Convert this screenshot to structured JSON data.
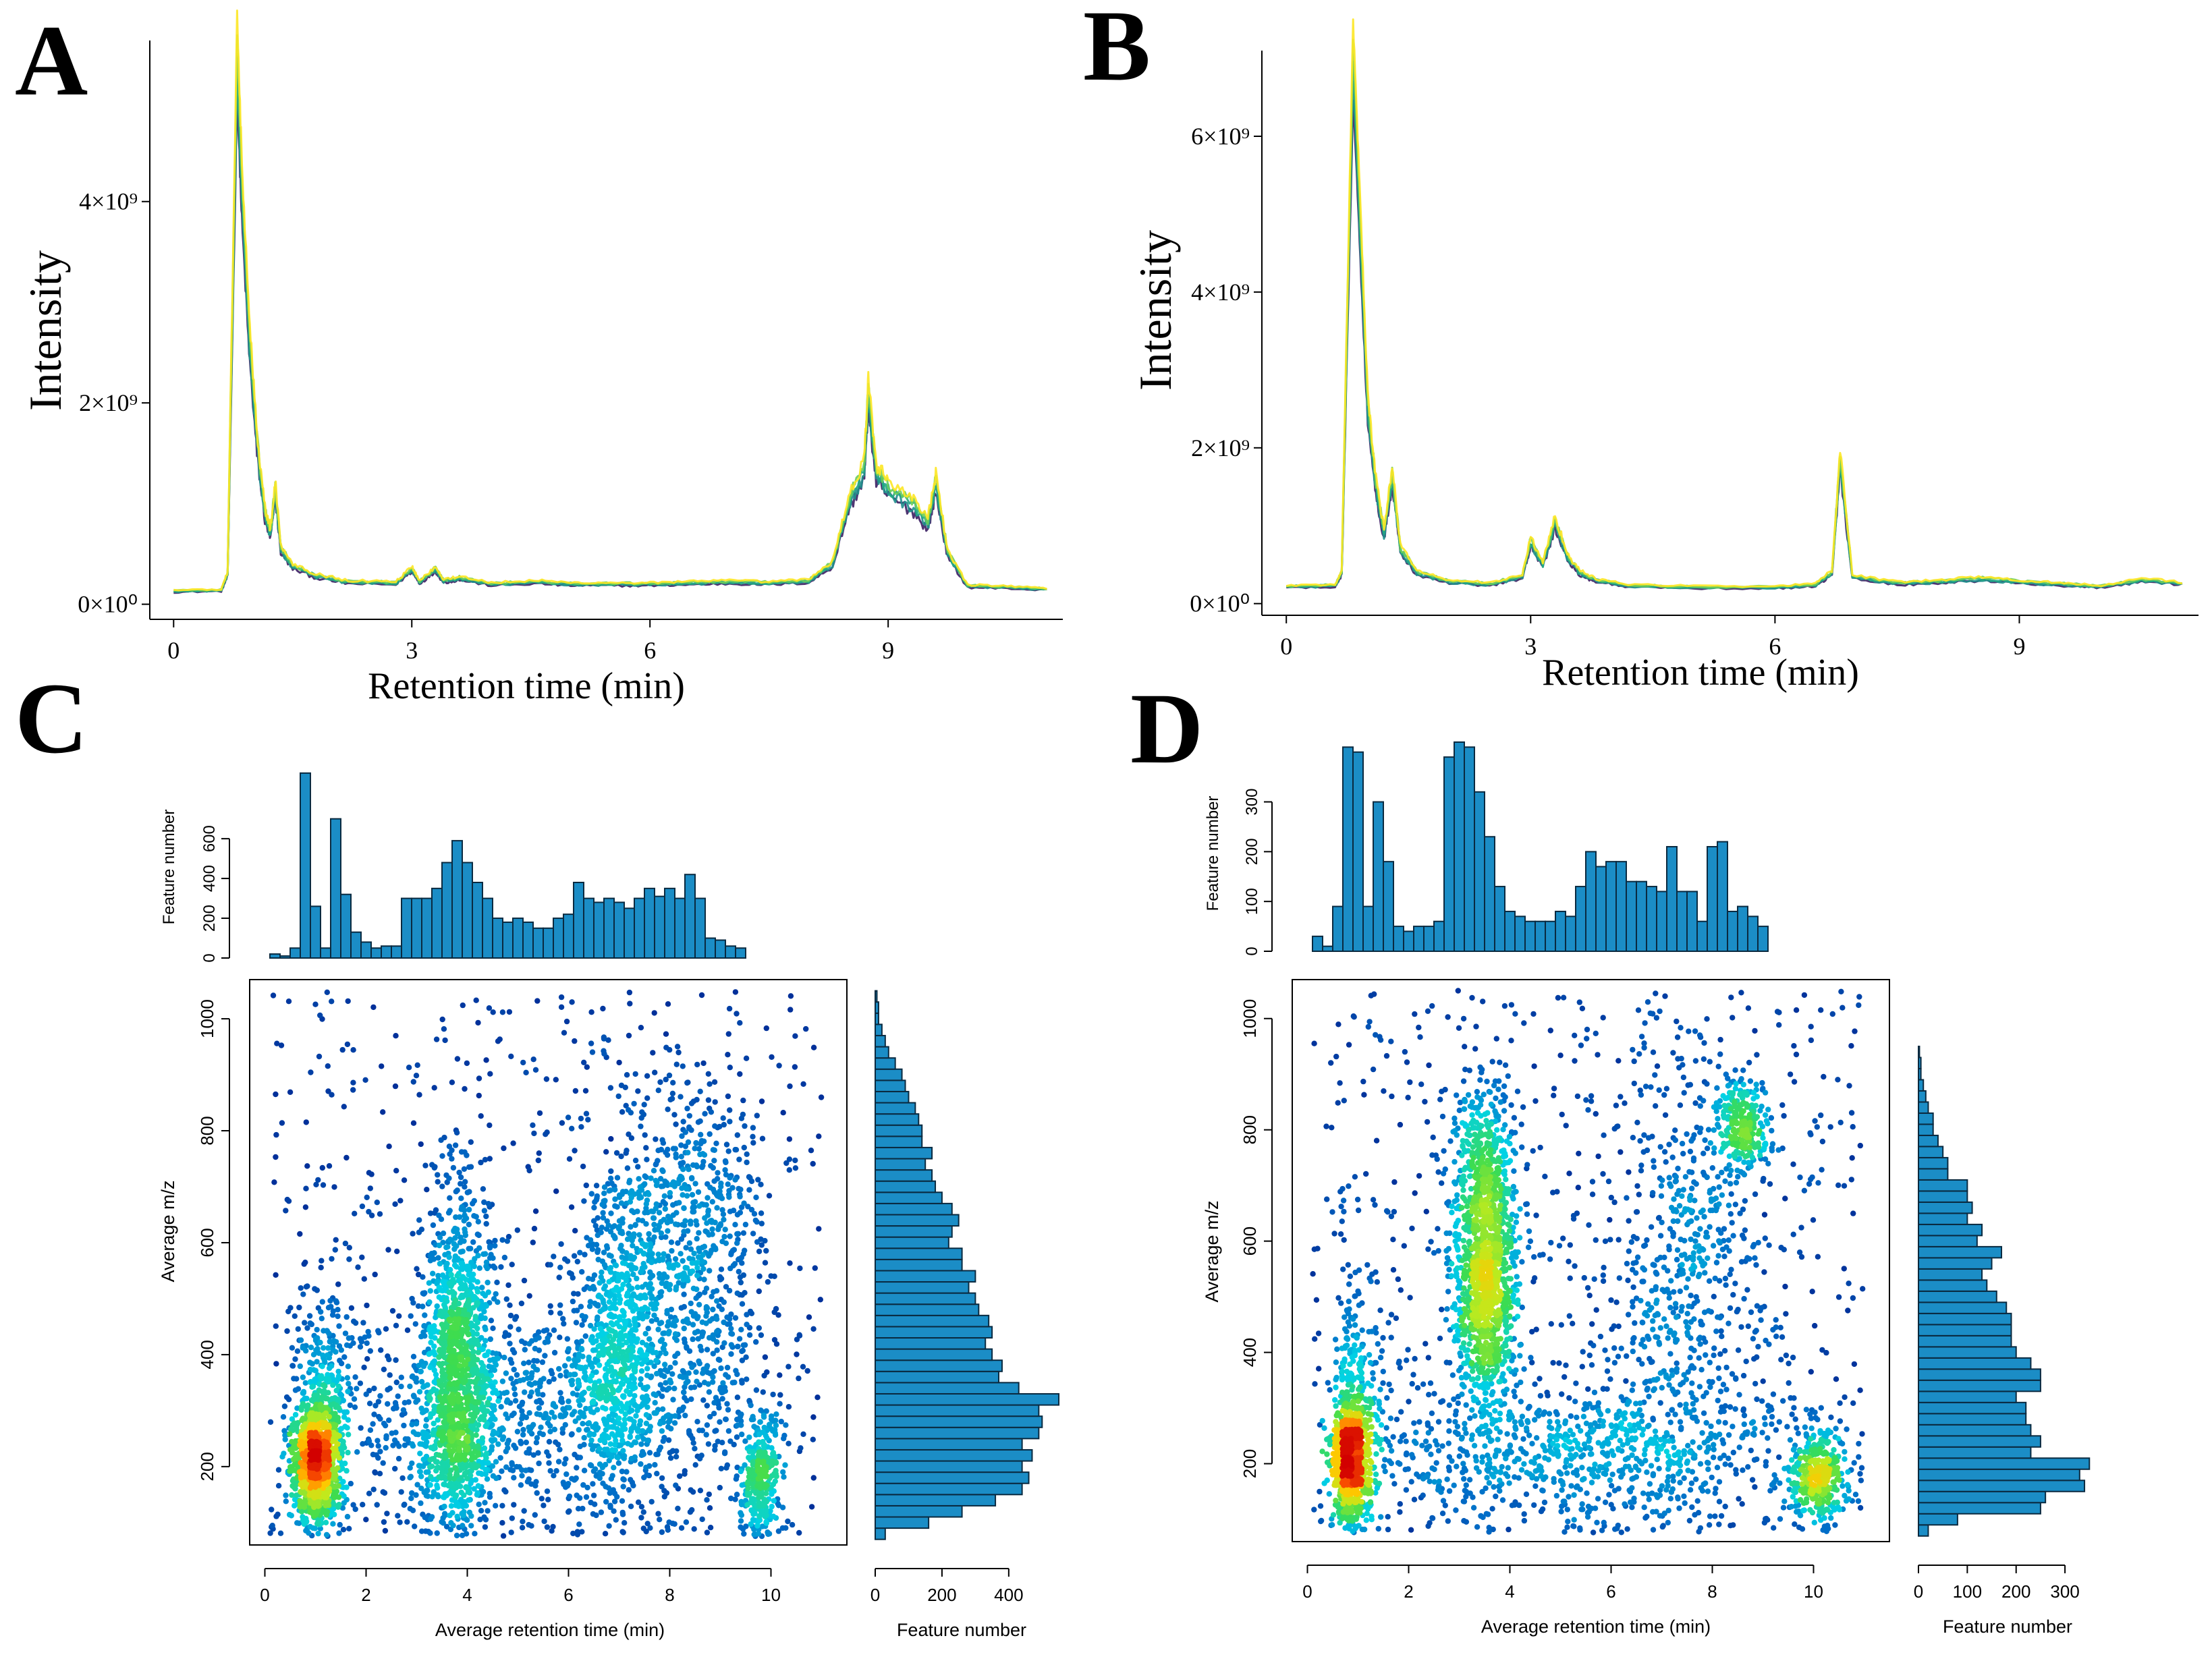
{
  "figure": {
    "panels": {
      "A": {
        "letter": "A"
      },
      "B": {
        "letter": "B"
      },
      "C": {
        "letter": "C"
      },
      "D": {
        "letter": "D"
      }
    }
  },
  "chart_data": [
    {
      "panel": "A",
      "type": "line",
      "title": "",
      "xlabel": "Retention time (min)",
      "ylabel": "Intensity",
      "x_ticks": [
        "0",
        "3",
        "6",
        "9"
      ],
      "x_tick_values": [
        0,
        3,
        6,
        9
      ],
      "y_ticks": [
        "0×10⁰",
        "2×10⁹",
        "4×10⁹"
      ],
      "y_tick_values": [
        0,
        2000000000,
        4000000000
      ],
      "xlim": [
        -0.3,
        11.2
      ],
      "ylim": [
        -150000000,
        5600000000
      ],
      "series_colors": [
        "#3b1f63",
        "#1f8f8c",
        "#22a884",
        "#6ccd5a",
        "#fde725"
      ],
      "series_count": 5,
      "x": [
        0,
        0.6,
        0.68,
        0.8,
        0.86,
        0.95,
        1.05,
        1.15,
        1.22,
        1.28,
        1.35,
        1.5,
        1.8,
        2.2,
        2.8,
        3.0,
        3.1,
        3.3,
        3.4,
        3.6,
        4.0,
        4.6,
        5.0,
        5.5,
        6.0,
        6.5,
        7.0,
        7.5,
        8.0,
        8.3,
        8.5,
        8.7,
        8.75,
        8.85,
        9.0,
        9.3,
        9.5,
        9.6,
        9.75,
        10.0,
        10.5,
        11.0
      ],
      "y": [
        130000000,
        140000000,
        300000000,
        5450000000,
        4100000000,
        2700000000,
        1600000000,
        900000000,
        700000000,
        1150000000,
        550000000,
        380000000,
        280000000,
        220000000,
        210000000,
        350000000,
        220000000,
        350000000,
        230000000,
        260000000,
        200000000,
        220000000,
        200000000,
        200000000,
        200000000,
        210000000,
        220000000,
        210000000,
        230000000,
        400000000,
        1000000000,
        1350000000,
        2100000000,
        1300000000,
        1150000000,
        1000000000,
        800000000,
        1200000000,
        500000000,
        180000000,
        170000000,
        150000000
      ]
    },
    {
      "panel": "B",
      "type": "line",
      "title": "",
      "xlabel": "Retention time (min)",
      "ylabel": "Intensity",
      "x_ticks": [
        "0",
        "3",
        "6",
        "9"
      ],
      "x_tick_values": [
        0,
        3,
        6,
        9
      ],
      "y_ticks": [
        "0×10⁰",
        "2×10⁹",
        "4×10⁹",
        "6×10⁹"
      ],
      "y_tick_values": [
        0,
        2000000000,
        4000000000,
        6000000000
      ],
      "xlim": [
        -0.3,
        11.2
      ],
      "ylim": [
        -150000000,
        7100000000
      ],
      "series_colors": [
        "#3b1f63",
        "#1f8f8c",
        "#22a884",
        "#6ccd5a",
        "#fde725"
      ],
      "series_count": 5,
      "x": [
        0,
        0.6,
        0.68,
        0.82,
        0.9,
        1.0,
        1.1,
        1.2,
        1.3,
        1.4,
        1.6,
        2.0,
        2.5,
        2.9,
        3.0,
        3.15,
        3.3,
        3.45,
        3.6,
        3.8,
        4.2,
        5.0,
        6.0,
        6.5,
        6.7,
        6.8,
        6.95,
        7.5,
        8.0,
        8.5,
        9.0,
        9.5,
        10.0,
        10.5,
        11.0
      ],
      "y": [
        220000000,
        230000000,
        400000000,
        7000000000,
        5000000000,
        2500000000,
        1500000000,
        900000000,
        1650000000,
        700000000,
        400000000,
        280000000,
        250000000,
        350000000,
        800000000,
        500000000,
        1050000000,
        600000000,
        400000000,
        300000000,
        230000000,
        210000000,
        210000000,
        240000000,
        400000000,
        1850000000,
        350000000,
        260000000,
        280000000,
        320000000,
        280000000,
        250000000,
        220000000,
        300000000,
        260000000
      ]
    },
    {
      "panel": "C",
      "type": "scatter",
      "title": "",
      "xlabel": "Average retention time (min)",
      "ylabel": "Average m/z",
      "xlim": [
        -0.3,
        11.5
      ],
      "ylim": [
        60,
        1070
      ],
      "x_ticks": [
        "0",
        "2",
        "4",
        "6",
        "8",
        "10"
      ],
      "x_tick_values": [
        0,
        2,
        4,
        6,
        8,
        10
      ],
      "y_ticks": [
        "200",
        "400",
        "600",
        "800",
        "1000"
      ],
      "y_tick_values": [
        200,
        400,
        600,
        800,
        1000
      ],
      "density_clusters": [
        {
          "x": 1.0,
          "y": 210,
          "sx": 0.22,
          "sy": 55,
          "n": 900
        },
        {
          "x": 1.2,
          "y": 300,
          "sx": 0.25,
          "sy": 110,
          "n": 350
        },
        {
          "x": 3.8,
          "y": 420,
          "sx": 0.35,
          "sy": 150,
          "n": 900
        },
        {
          "x": 3.8,
          "y": 220,
          "sx": 0.35,
          "sy": 80,
          "n": 400
        },
        {
          "x": 6.9,
          "y": 420,
          "sx": 0.4,
          "sy": 140,
          "n": 600
        },
        {
          "x": 8.3,
          "y": 600,
          "sx": 0.8,
          "sy": 150,
          "n": 700
        },
        {
          "x": 9.8,
          "y": 180,
          "sx": 0.2,
          "sy": 60,
          "n": 300
        },
        {
          "x": 5.5,
          "y": 300,
          "sx": 2.5,
          "sy": 90,
          "n": 900
        }
      ],
      "top_hist": {
        "ylabel": "Feature number",
        "y_ticks": [
          "0",
          "200",
          "400",
          "600"
        ],
        "y_tick_values": [
          0,
          200,
          400,
          600
        ],
        "ylim": [
          0,
          950
        ],
        "bin_start": 0.1,
        "bin_width": 0.2,
        "counts": [
          20,
          10,
          50,
          930,
          260,
          50,
          700,
          320,
          130,
          80,
          50,
          60,
          60,
          300,
          300,
          300,
          350,
          480,
          590,
          480,
          380,
          300,
          200,
          180,
          200,
          180,
          150,
          150,
          200,
          220,
          380,
          300,
          280,
          300,
          280,
          250,
          300,
          350,
          310,
          350,
          300,
          420,
          300,
          100,
          90,
          60,
          50
        ]
      },
      "right_hist": {
        "xlabel": "Feature number",
        "x_ticks": [
          "0",
          "200",
          "400"
        ],
        "x_tick_values": [
          0,
          200,
          400
        ],
        "xlim": [
          0,
          560
        ],
        "bin_start": 70,
        "bin_width": 20,
        "counts": [
          30,
          160,
          260,
          360,
          440,
          460,
          440,
          470,
          440,
          490,
          500,
          490,
          550,
          430,
          370,
          380,
          350,
          330,
          350,
          340,
          310,
          300,
          280,
          300,
          260,
          260,
          220,
          230,
          250,
          230,
          200,
          180,
          170,
          150,
          170,
          140,
          140,
          130,
          120,
          100,
          90,
          80,
          60,
          40,
          30,
          20,
          10,
          10,
          5
        ]
      }
    },
    {
      "panel": "D",
      "type": "scatter",
      "title": "",
      "xlabel": "Average retention time (min)",
      "ylabel": "Average m/z",
      "xlim": [
        -0.3,
        11.5
      ],
      "ylim": [
        60,
        1070
      ],
      "x_ticks": [
        "0",
        "2",
        "4",
        "6",
        "8",
        "10"
      ],
      "x_tick_values": [
        0,
        2,
        4,
        6,
        8,
        10
      ],
      "y_ticks": [
        "200",
        "400",
        "600",
        "800",
        "1000"
      ],
      "y_tick_values": [
        200,
        400,
        600,
        800,
        1000
      ],
      "density_clusters": [
        {
          "x": 0.85,
          "y": 210,
          "sx": 0.18,
          "sy": 55,
          "n": 700
        },
        {
          "x": 1.0,
          "y": 300,
          "sx": 0.25,
          "sy": 120,
          "n": 250
        },
        {
          "x": 3.5,
          "y": 520,
          "sx": 0.3,
          "sy": 120,
          "n": 1000
        },
        {
          "x": 3.5,
          "y": 720,
          "sx": 0.3,
          "sy": 100,
          "n": 400
        },
        {
          "x": 8.6,
          "y": 810,
          "sx": 0.25,
          "sy": 40,
          "n": 250
        },
        {
          "x": 7.5,
          "y": 550,
          "sx": 0.8,
          "sy": 200,
          "n": 500
        },
        {
          "x": 10.1,
          "y": 180,
          "sx": 0.25,
          "sy": 40,
          "n": 350
        },
        {
          "x": 5.5,
          "y": 230,
          "sx": 2.5,
          "sy": 70,
          "n": 800
        }
      ],
      "top_hist": {
        "ylabel": "Feature number",
        "y_ticks": [
          "0",
          "100",
          "200",
          "300"
        ],
        "y_tick_values": [
          0,
          100,
          200,
          300
        ],
        "ylim": [
          0,
          420
        ],
        "bin_start": 0.1,
        "bin_width": 0.2,
        "counts": [
          30,
          10,
          90,
          410,
          400,
          90,
          300,
          180,
          50,
          40,
          50,
          50,
          60,
          390,
          420,
          410,
          320,
          230,
          130,
          80,
          70,
          60,
          60,
          60,
          80,
          70,
          130,
          200,
          170,
          180,
          180,
          140,
          140,
          130,
          120,
          210,
          120,
          120,
          60,
          210,
          220,
          80,
          90,
          70,
          50
        ]
      },
      "right_hist": {
        "xlabel": "Feature number",
        "x_ticks": [
          "0",
          "100",
          "200",
          "300"
        ],
        "x_tick_values": [
          0,
          100,
          200,
          300
        ],
        "xlim": [
          0,
          380
        ],
        "bin_start": 70,
        "bin_width": 20,
        "counts": [
          20,
          80,
          250,
          260,
          340,
          330,
          350,
          230,
          250,
          230,
          220,
          220,
          200,
          250,
          250,
          230,
          200,
          190,
          190,
          190,
          180,
          160,
          140,
          130,
          150,
          170,
          120,
          130,
          100,
          110,
          100,
          100,
          60,
          60,
          50,
          40,
          30,
          30,
          20,
          15,
          10,
          5,
          5,
          2
        ]
      }
    }
  ]
}
